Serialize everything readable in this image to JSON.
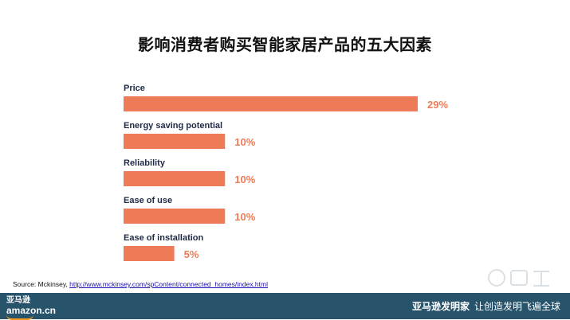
{
  "chart_data": {
    "type": "bar",
    "orientation": "horizontal",
    "title": "影响消费者购买智能家居产品的五大因素",
    "categories": [
      "Price",
      "Energy saving potential",
      "Reliability",
      "Ease of use",
      "Ease of installation"
    ],
    "values": [
      29,
      10,
      10,
      10,
      5
    ],
    "value_labels": [
      "29%",
      "10%",
      "10%",
      "10%",
      "5%"
    ],
    "unit": "%",
    "xlim": [
      0,
      29
    ],
    "grid": false,
    "legend": "none",
    "bar_color": "#ee7b57",
    "label_color": "#ee7b57"
  },
  "source": {
    "prefix": "Source: Mckinsey, ",
    "link": "http://www.mckinsey.com/spContent/connected_homes/index.html"
  },
  "footer": {
    "logo_cn": "亚马逊",
    "logo_en": "amazon.cn",
    "brand": "亚马逊发明家",
    "slogan": "让创造发明飞遍全球",
    "bg_color": "#27536b"
  }
}
